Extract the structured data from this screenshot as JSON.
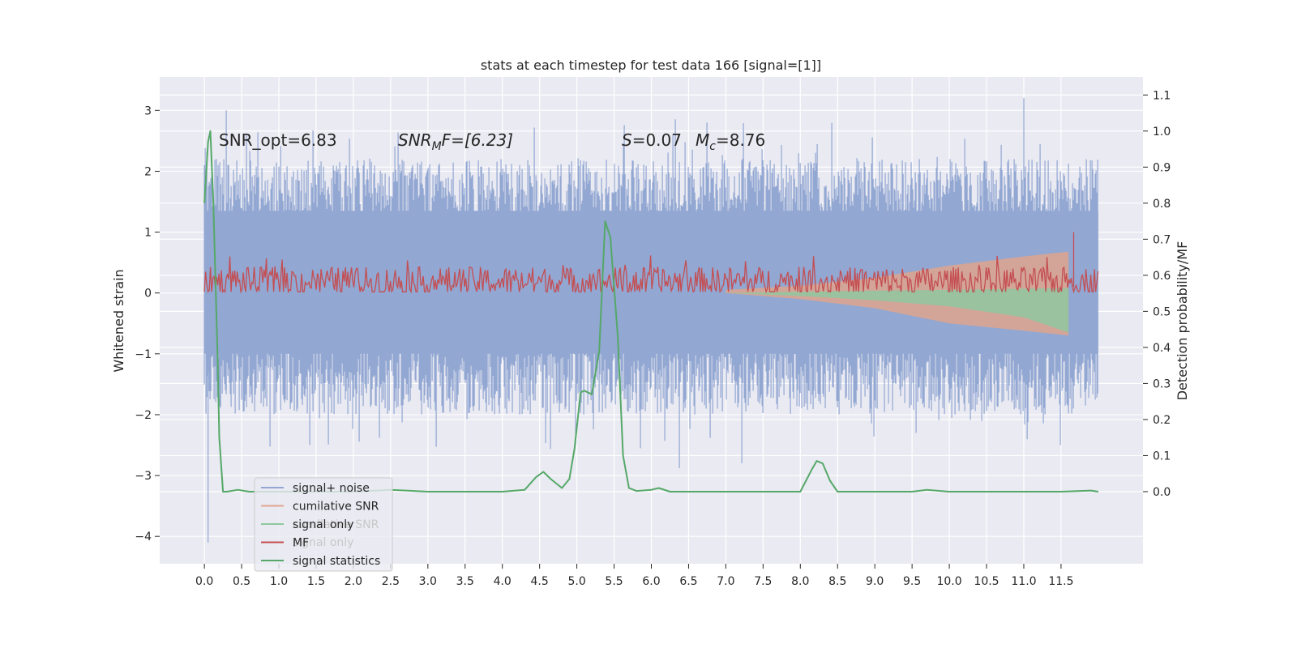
{
  "chart_data": {
    "type": "line",
    "title": "stats at each timestep for test data 166 [signal=[1]]",
    "ylabel_left": "Whitened strain",
    "ylabel_right": "Detection probability/MF",
    "xlim": [
      -0.6,
      12.6
    ],
    "ylim_left": [
      -4.45,
      3.55
    ],
    "ylim_right": [
      -0.2,
      1.15
    ],
    "x_ticks": [
      "0.0",
      "0.5",
      "1.0",
      "1.5",
      "2.0",
      "2.5",
      "3.0",
      "3.5",
      "4.0",
      "4.5",
      "5.0",
      "5.5",
      "6.0",
      "6.5",
      "7.0",
      "7.5",
      "8.0",
      "8.5",
      "9.0",
      "9.5",
      "10.0",
      "10.5",
      "11.0",
      "11.5"
    ],
    "y_ticks_left": [
      "−4",
      "−3",
      "−2",
      "−1",
      "0",
      "1",
      "2",
      "3"
    ],
    "y_ticks_right": [
      "0.0",
      "0.1",
      "0.2",
      "0.3",
      "0.4",
      "0.5",
      "0.6",
      "0.7",
      "0.8",
      "0.9",
      "1.0",
      "1.1"
    ],
    "grid": true,
    "background": "#eaeaf2",
    "annotations": {
      "snr_opt": "SNR_opt=6.83",
      "snr_mf_main": "SNR",
      "snr_mf_sub": "M",
      "snr_mf_tail": "F=[6.23]",
      "s_main": "S",
      "s_tail": "=0.07",
      "mc_main": "M",
      "mc_sub": "c",
      "mc_tail": "=8.76"
    },
    "legend": {
      "placement": "lower-left",
      "entries": [
        {
          "label": "signal+ noise",
          "color": "#92a7d2"
        },
        {
          "label": "cumilative SNR",
          "color": "#dea58e"
        },
        {
          "label": "signal only",
          "color": "#8fc79f"
        },
        {
          "label": "MF",
          "color": "#c44e52"
        },
        {
          "label": "signal statistics",
          "color": "#55a868"
        }
      ],
      "ghost_labels": [
        "cumilative SNR",
        "signal only"
      ]
    },
    "series": [
      {
        "name": "signal+ noise",
        "color": "#92a7d2",
        "x_range": [
          0.0,
          12.0
        ],
        "envelope_core": [
          -1.0,
          1.35
        ],
        "peak_max": 3.2,
        "peak_min": -4.1
      },
      {
        "name": "MF",
        "color": "#c44e52",
        "x_range": [
          0.0,
          12.0
        ],
        "baseline": 0.18,
        "amplitude": 0.25,
        "spike": {
          "x": 11.67,
          "y": 1.0
        }
      },
      {
        "name": "cumilative SNR",
        "color": "#dea58e",
        "x": [
          7.0,
          8.0,
          9.0,
          10.0,
          11.0,
          11.6
        ],
        "upper": [
          0.05,
          0.12,
          0.25,
          0.45,
          0.6,
          0.68
        ],
        "lower": [
          0.0,
          -0.1,
          -0.25,
          -0.5,
          -0.62,
          -0.7
        ]
      },
      {
        "name": "signal only",
        "color": "#8fc79f",
        "x": [
          7.0,
          8.0,
          9.0,
          10.0,
          11.0,
          11.6
        ],
        "upper": [
          0.0,
          0.02,
          0.04,
          0.05,
          0.07,
          0.08
        ],
        "lower": [
          0.0,
          -0.05,
          -0.12,
          -0.22,
          -0.4,
          -0.65
        ]
      },
      {
        "name": "signal statistics",
        "color": "#55a868",
        "axis": "right",
        "x": [
          0.0,
          0.05,
          0.08,
          0.12,
          0.18,
          0.2,
          0.25,
          0.3,
          0.45,
          0.6,
          0.8,
          1.5,
          2.0,
          2.5,
          3.0,
          4.0,
          4.3,
          4.45,
          4.55,
          4.65,
          4.8,
          4.9,
          4.97,
          5.05,
          5.1,
          5.2,
          5.3,
          5.38,
          5.45,
          5.55,
          5.62,
          5.7,
          5.8,
          6.0,
          6.1,
          6.25,
          6.5,
          7.0,
          8.0,
          8.15,
          8.22,
          8.3,
          8.4,
          8.5,
          9.0,
          9.5,
          9.7,
          10.0,
          11.5,
          11.9,
          12.0
        ],
        "y": [
          0.8,
          0.97,
          1.0,
          0.8,
          0.35,
          0.15,
          0.0,
          0.0,
          0.005,
          0.0,
          0.0,
          0.0,
          0.0,
          0.005,
          0.0,
          0.0,
          0.005,
          0.04,
          0.055,
          0.035,
          0.01,
          0.035,
          0.12,
          0.275,
          0.28,
          0.27,
          0.39,
          0.75,
          0.705,
          0.43,
          0.1,
          0.01,
          0.002,
          0.005,
          0.01,
          0.0,
          0.0,
          0.0,
          0.0,
          0.06,
          0.085,
          0.078,
          0.03,
          0.0,
          0.0,
          0.0,
          0.005,
          0.0,
          0.0,
          0.003,
          0.0
        ]
      }
    ]
  }
}
